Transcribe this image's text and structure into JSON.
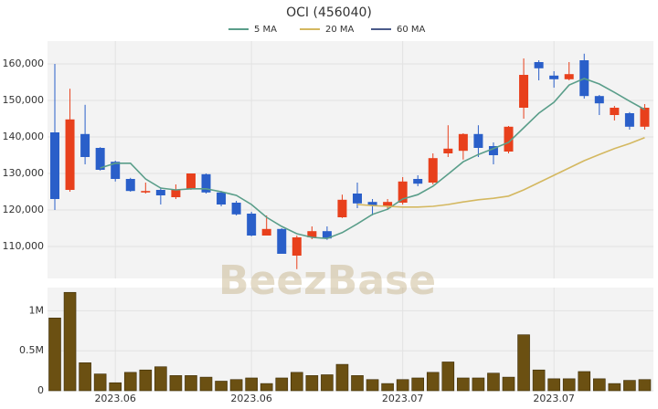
{
  "chart_data": [
    {
      "type": "candlestick",
      "title": "OCI (456040)",
      "open": [
        141250,
        125500,
        140800,
        137000,
        133200,
        128500,
        124800,
        125500,
        123500,
        125800,
        129800,
        124800,
        122000,
        119000,
        113000,
        114800,
        107500,
        112500,
        114200,
        118000,
        124500,
        122200,
        121000,
        122000,
        128500,
        127500,
        135500,
        136200,
        140800,
        137500,
        136000,
        148000,
        160500,
        156800,
        155800,
        161000,
        151200,
        146000,
        146500,
        142800
      ],
      "high": [
        160000,
        153200,
        148800,
        137200,
        133500,
        128800,
        127500,
        126200,
        127000,
        130000,
        130000,
        125200,
        122500,
        119500,
        118500,
        115000,
        113000,
        115500,
        115500,
        124200,
        127500,
        123000,
        123000,
        129000,
        129500,
        135500,
        143200,
        141000,
        143200,
        138500,
        143000,
        161500,
        161000,
        158000,
        160500,
        162800,
        151500,
        148500,
        146800,
        149000
      ],
      "low": [
        120000,
        125000,
        132500,
        130800,
        127800,
        125000,
        124500,
        121500,
        123000,
        125500,
        124500,
        121000,
        118500,
        112800,
        113000,
        108000,
        103800,
        112000,
        111800,
        117800,
        120500,
        118500,
        120000,
        121500,
        126500,
        127000,
        134500,
        133800,
        134500,
        132500,
        135500,
        145000,
        155500,
        153500,
        155500,
        150500,
        146000,
        144500,
        142000,
        142000
      ],
      "close": [
        123000,
        144800,
        134500,
        131000,
        128500,
        125200,
        125200,
        124000,
        125500,
        130000,
        124800,
        121500,
        118800,
        113000,
        114800,
        108000,
        112500,
        114200,
        112200,
        122800,
        121800,
        121200,
        122200,
        127800,
        127200,
        134200,
        136800,
        140800,
        137000,
        135000,
        142800,
        157000,
        158800,
        155800,
        157200,
        151200,
        149200,
        148000,
        142800,
        148000
      ],
      "up_color": "#e8401c",
      "down_color": "#2a5fc9",
      "series": [
        {
          "name": "5 MA",
          "color": "#5a9e8a",
          "values": [
            null,
            null,
            null,
            131500,
            132800,
            132800,
            128500,
            126000,
            125500,
            125800,
            125800,
            125000,
            124000,
            121500,
            118000,
            115500,
            113500,
            112500,
            112200,
            113800,
            116200,
            118800,
            120200,
            123000,
            124200,
            126500,
            129800,
            133200,
            135200,
            136800,
            138500,
            142500,
            146500,
            149500,
            154200,
            156000,
            154500,
            152200,
            149800,
            147500
          ]
        },
        {
          "name": "20 MA",
          "color": "#d4b860",
          "values": [
            null,
            null,
            null,
            null,
            null,
            null,
            null,
            null,
            null,
            null,
            null,
            null,
            null,
            null,
            null,
            null,
            null,
            null,
            null,
            null,
            121500,
            121200,
            121000,
            120800,
            120800,
            121000,
            121500,
            122200,
            122800,
            123200,
            123800,
            125500,
            127500,
            129500,
            131500,
            133500,
            135200,
            136800,
            138200,
            139800
          ]
        },
        {
          "name": "60 MA",
          "color": "#4a5a8a",
          "values": [
            null,
            null,
            null,
            null,
            null,
            null,
            null,
            null,
            null,
            null,
            null,
            null,
            null,
            null,
            null,
            null,
            null,
            null,
            null,
            null,
            null,
            null,
            null,
            null,
            null,
            null,
            null,
            null,
            null,
            null,
            null,
            null,
            null,
            null,
            null,
            null,
            null,
            null,
            null,
            null
          ]
        }
      ],
      "ylim": [
        101250,
        166250
      ],
      "yticks": [
        {
          "value": 110000,
          "label": "110,000"
        },
        {
          "value": 120000,
          "label": "120,000"
        },
        {
          "value": 130000,
          "label": "130,000"
        },
        {
          "value": 140000,
          "label": "140,000"
        },
        {
          "value": 150000,
          "label": "150,000"
        },
        {
          "value": 160000,
          "label": "160,000"
        }
      ],
      "watermark": "BeezBase",
      "grid": true
    },
    {
      "type": "bar",
      "color": "#6b5012",
      "categories": [
        null,
        null,
        null,
        null,
        "2023.06",
        null,
        null,
        null,
        null,
        null,
        null,
        null,
        null,
        "2023.06",
        null,
        null,
        null,
        null,
        null,
        null,
        null,
        null,
        null,
        "2023.07",
        null,
        null,
        null,
        null,
        null,
        null,
        null,
        null,
        null,
        "2023.07",
        null,
        null,
        null,
        null,
        null,
        null
      ],
      "values": [
        910000,
        1230000,
        350000,
        210000,
        100000,
        230000,
        260000,
        300000,
        190000,
        190000,
        170000,
        120000,
        140000,
        160000,
        90000,
        160000,
        230000,
        190000,
        200000,
        330000,
        190000,
        140000,
        90000,
        140000,
        160000,
        230000,
        360000,
        160000,
        160000,
        220000,
        170000,
        700000,
        260000,
        150000,
        150000,
        240000,
        150000,
        90000,
        130000,
        140000
      ],
      "ylim": [
        0,
        1290000
      ],
      "yticks": [
        0,
        {
          "value": 500000,
          "label": "0.5M"
        },
        {
          "value": 1000000,
          "label": "1M"
        }
      ],
      "grid": true
    }
  ]
}
